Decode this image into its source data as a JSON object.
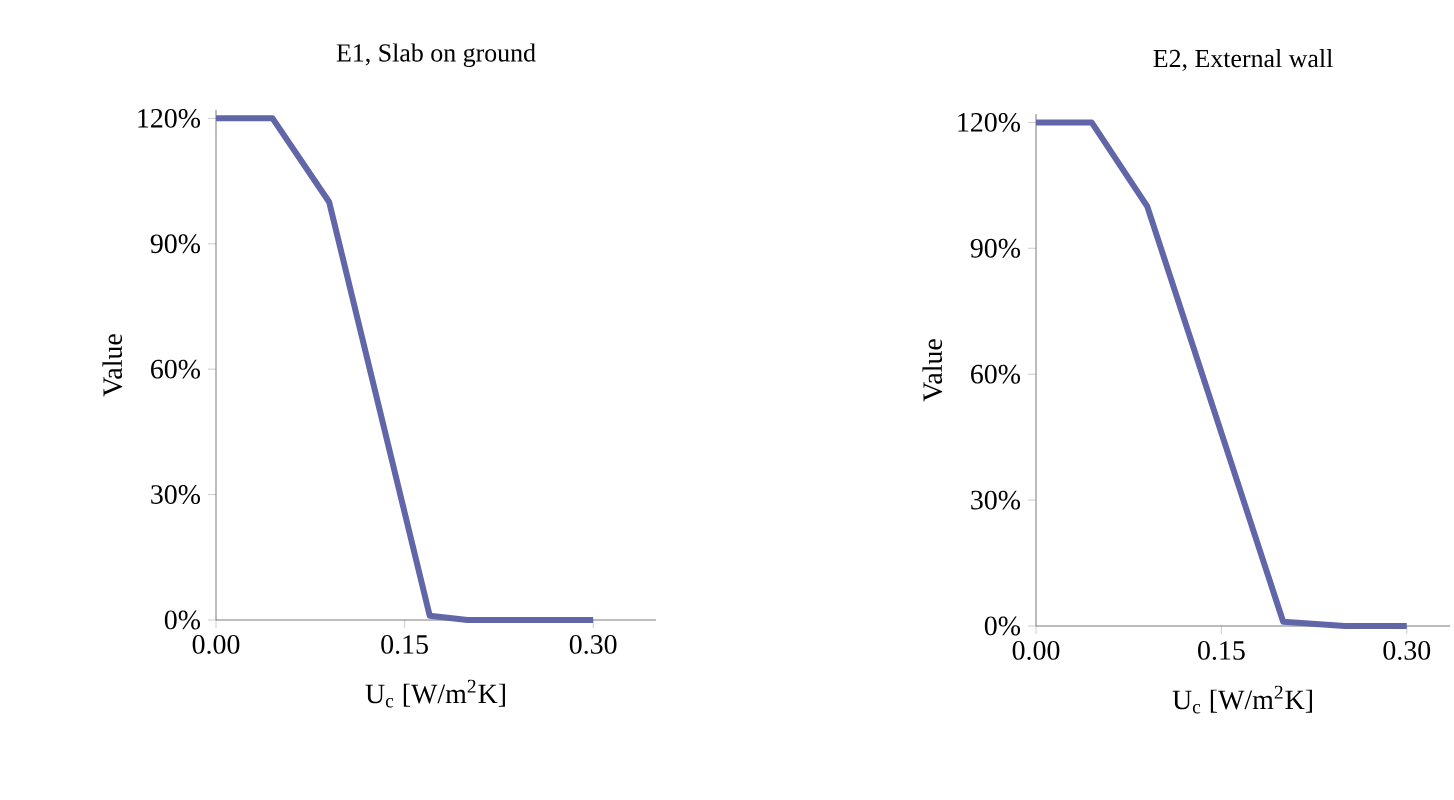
{
  "chart_data": [
    {
      "type": "line",
      "title": "E1, Slab on ground",
      "xlabel": "U$_{c}$ [W/m$^{2}$K]",
      "ylabel": "Value",
      "x": [
        0,
        0.045,
        0.09,
        0.17,
        0.2,
        0.3
      ],
      "series": [
        {
          "color": "#6066a8",
          "values": [
            120,
            120,
            100,
            1,
            0,
            0
          ]
        }
      ],
      "xlim": [
        0,
        0.35
      ],
      "ylim": [
        0,
        122
      ],
      "xticks": [
        {
          "value": 0,
          "label": "0.00"
        },
        {
          "value": 0.15,
          "label": "0.15"
        },
        {
          "value": 0.3,
          "label": "0.30"
        }
      ],
      "yticks": [
        {
          "value": 0,
          "label": "0%"
        },
        {
          "value": 30,
          "label": "30%"
        },
        {
          "value": 60,
          "label": "60%"
        },
        {
          "value": 90,
          "label": "90%"
        },
        {
          "value": 120,
          "label": "120%"
        }
      ],
      "grid": false,
      "legend": false,
      "marker": "none",
      "line_style": "solid"
    },
    {
      "type": "line",
      "title": "E2, External wall",
      "xlabel": "U$_{c}$ [W/m$^{2}$K]",
      "ylabel": "Value",
      "x": [
        0,
        0.045,
        0.09,
        0.2,
        0.25,
        0.3
      ],
      "series": [
        {
          "color": "#6066a8",
          "values": [
            120,
            120,
            100,
            1,
            0,
            0
          ]
        }
      ],
      "xlim": [
        0,
        0.335
      ],
      "ylim": [
        0,
        122
      ],
      "xticks": [
        {
          "value": 0,
          "label": "0.00"
        },
        {
          "value": 0.15,
          "label": "0.15"
        },
        {
          "value": 0.3,
          "label": "0.30"
        }
      ],
      "yticks": [
        {
          "value": 0,
          "label": "0%"
        },
        {
          "value": 30,
          "label": "30%"
        },
        {
          "value": 60,
          "label": "60%"
        },
        {
          "value": 90,
          "label": "90%"
        },
        {
          "value": 120,
          "label": "120%"
        }
      ],
      "grid": false,
      "legend": false,
      "marker": "none",
      "line_style": "solid"
    }
  ]
}
